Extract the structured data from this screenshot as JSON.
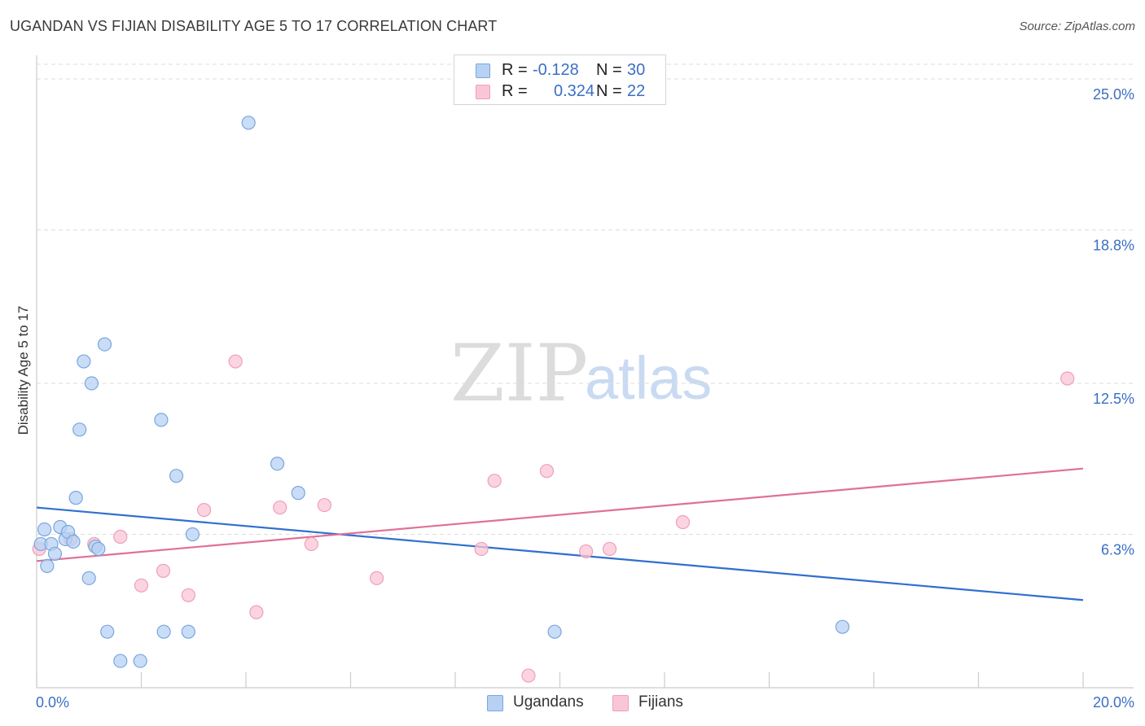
{
  "header": {
    "title": "UGANDAN VS FIJIAN DISABILITY AGE 5 TO 17 CORRELATION CHART",
    "source": "Source: ZipAtlas.com"
  },
  "watermark": {
    "zip": "ZIP",
    "atlas": "atlas"
  },
  "colors": {
    "ugandans_fill": "#b7d1f3",
    "ugandans_stroke": "#7aa6e0",
    "ugandans_line": "#2f6fce",
    "fijians_fill": "#f9c6d6",
    "fijians_stroke": "#ee9fb9",
    "fijians_line": "#e07098",
    "axis_label": "#3a6fc4",
    "grid": "#dddddd"
  },
  "legend": {
    "rows": [
      {
        "r_label": "R =",
        "r_value": "-0.128",
        "n_label": "N =",
        "n_value": "30"
      },
      {
        "r_label": "R =",
        "r_value": "0.324",
        "n_label": "N =",
        "n_value": "22"
      }
    ]
  },
  "bottom_legend": {
    "ugandans": "Ugandans",
    "fijians": "Fijians"
  },
  "chart_data": {
    "type": "scatter",
    "title": "UGANDAN VS FIJIAN DISABILITY AGE 5 TO 17 CORRELATION CHART",
    "xlabel": "",
    "ylabel": "Disability Age 5 to 17",
    "xlim": [
      0,
      20
    ],
    "ylim": [
      0,
      25.6
    ],
    "x_tick_labels": [
      "0.0%",
      "20.0%"
    ],
    "y_ticks": [
      6.3,
      12.5,
      18.8,
      25.0
    ],
    "y_tick_labels": [
      "6.3%",
      "12.5%",
      "18.8%",
      "25.0%"
    ],
    "grid": true,
    "legend_position": "top-center",
    "series": [
      {
        "name": "Ugandans",
        "r": -0.128,
        "n": 30,
        "points": [
          [
            0.08,
            5.9
          ],
          [
            0.15,
            6.5
          ],
          [
            0.2,
            5.0
          ],
          [
            0.28,
            5.9
          ],
          [
            0.35,
            5.5
          ],
          [
            0.45,
            6.6
          ],
          [
            0.55,
            6.1
          ],
          [
            0.6,
            6.4
          ],
          [
            0.7,
            6.0
          ],
          [
            0.75,
            7.8
          ],
          [
            0.82,
            10.6
          ],
          [
            0.9,
            13.4
          ],
          [
            1.0,
            4.5
          ],
          [
            1.05,
            12.5
          ],
          [
            1.12,
            5.8
          ],
          [
            1.18,
            5.7
          ],
          [
            1.3,
            14.1
          ],
          [
            1.35,
            2.3
          ],
          [
            1.6,
            1.1
          ],
          [
            1.98,
            1.1
          ],
          [
            2.38,
            11.0
          ],
          [
            2.43,
            2.3
          ],
          [
            2.67,
            8.7
          ],
          [
            2.9,
            2.3
          ],
          [
            2.98,
            6.3
          ],
          [
            4.05,
            23.2
          ],
          [
            4.6,
            9.2
          ],
          [
            5.0,
            8.0
          ],
          [
            9.9,
            2.3
          ],
          [
            15.4,
            2.5
          ]
        ],
        "trend": {
          "x": [
            0,
            20
          ],
          "y": [
            7.4,
            3.6
          ]
        }
      },
      {
        "name": "Fijians",
        "r": 0.324,
        "n": 22,
        "points": [
          [
            0.05,
            5.7
          ],
          [
            0.65,
            6.1
          ],
          [
            1.1,
            5.9
          ],
          [
            1.6,
            6.2
          ],
          [
            2.0,
            4.2
          ],
          [
            2.42,
            4.8
          ],
          [
            2.9,
            3.8
          ],
          [
            3.2,
            7.3
          ],
          [
            3.8,
            13.4
          ],
          [
            4.2,
            3.1
          ],
          [
            4.65,
            7.4
          ],
          [
            5.25,
            5.9
          ],
          [
            5.5,
            7.5
          ],
          [
            6.5,
            4.5
          ],
          [
            8.5,
            5.7
          ],
          [
            8.75,
            8.5
          ],
          [
            9.4,
            0.5
          ],
          [
            9.75,
            8.9
          ],
          [
            10.5,
            5.6
          ],
          [
            10.95,
            5.7
          ],
          [
            12.35,
            6.8
          ],
          [
            19.7,
            12.7
          ]
        ],
        "trend": {
          "x": [
            0,
            20
          ],
          "y": [
            5.2,
            9.0
          ]
        }
      }
    ]
  }
}
